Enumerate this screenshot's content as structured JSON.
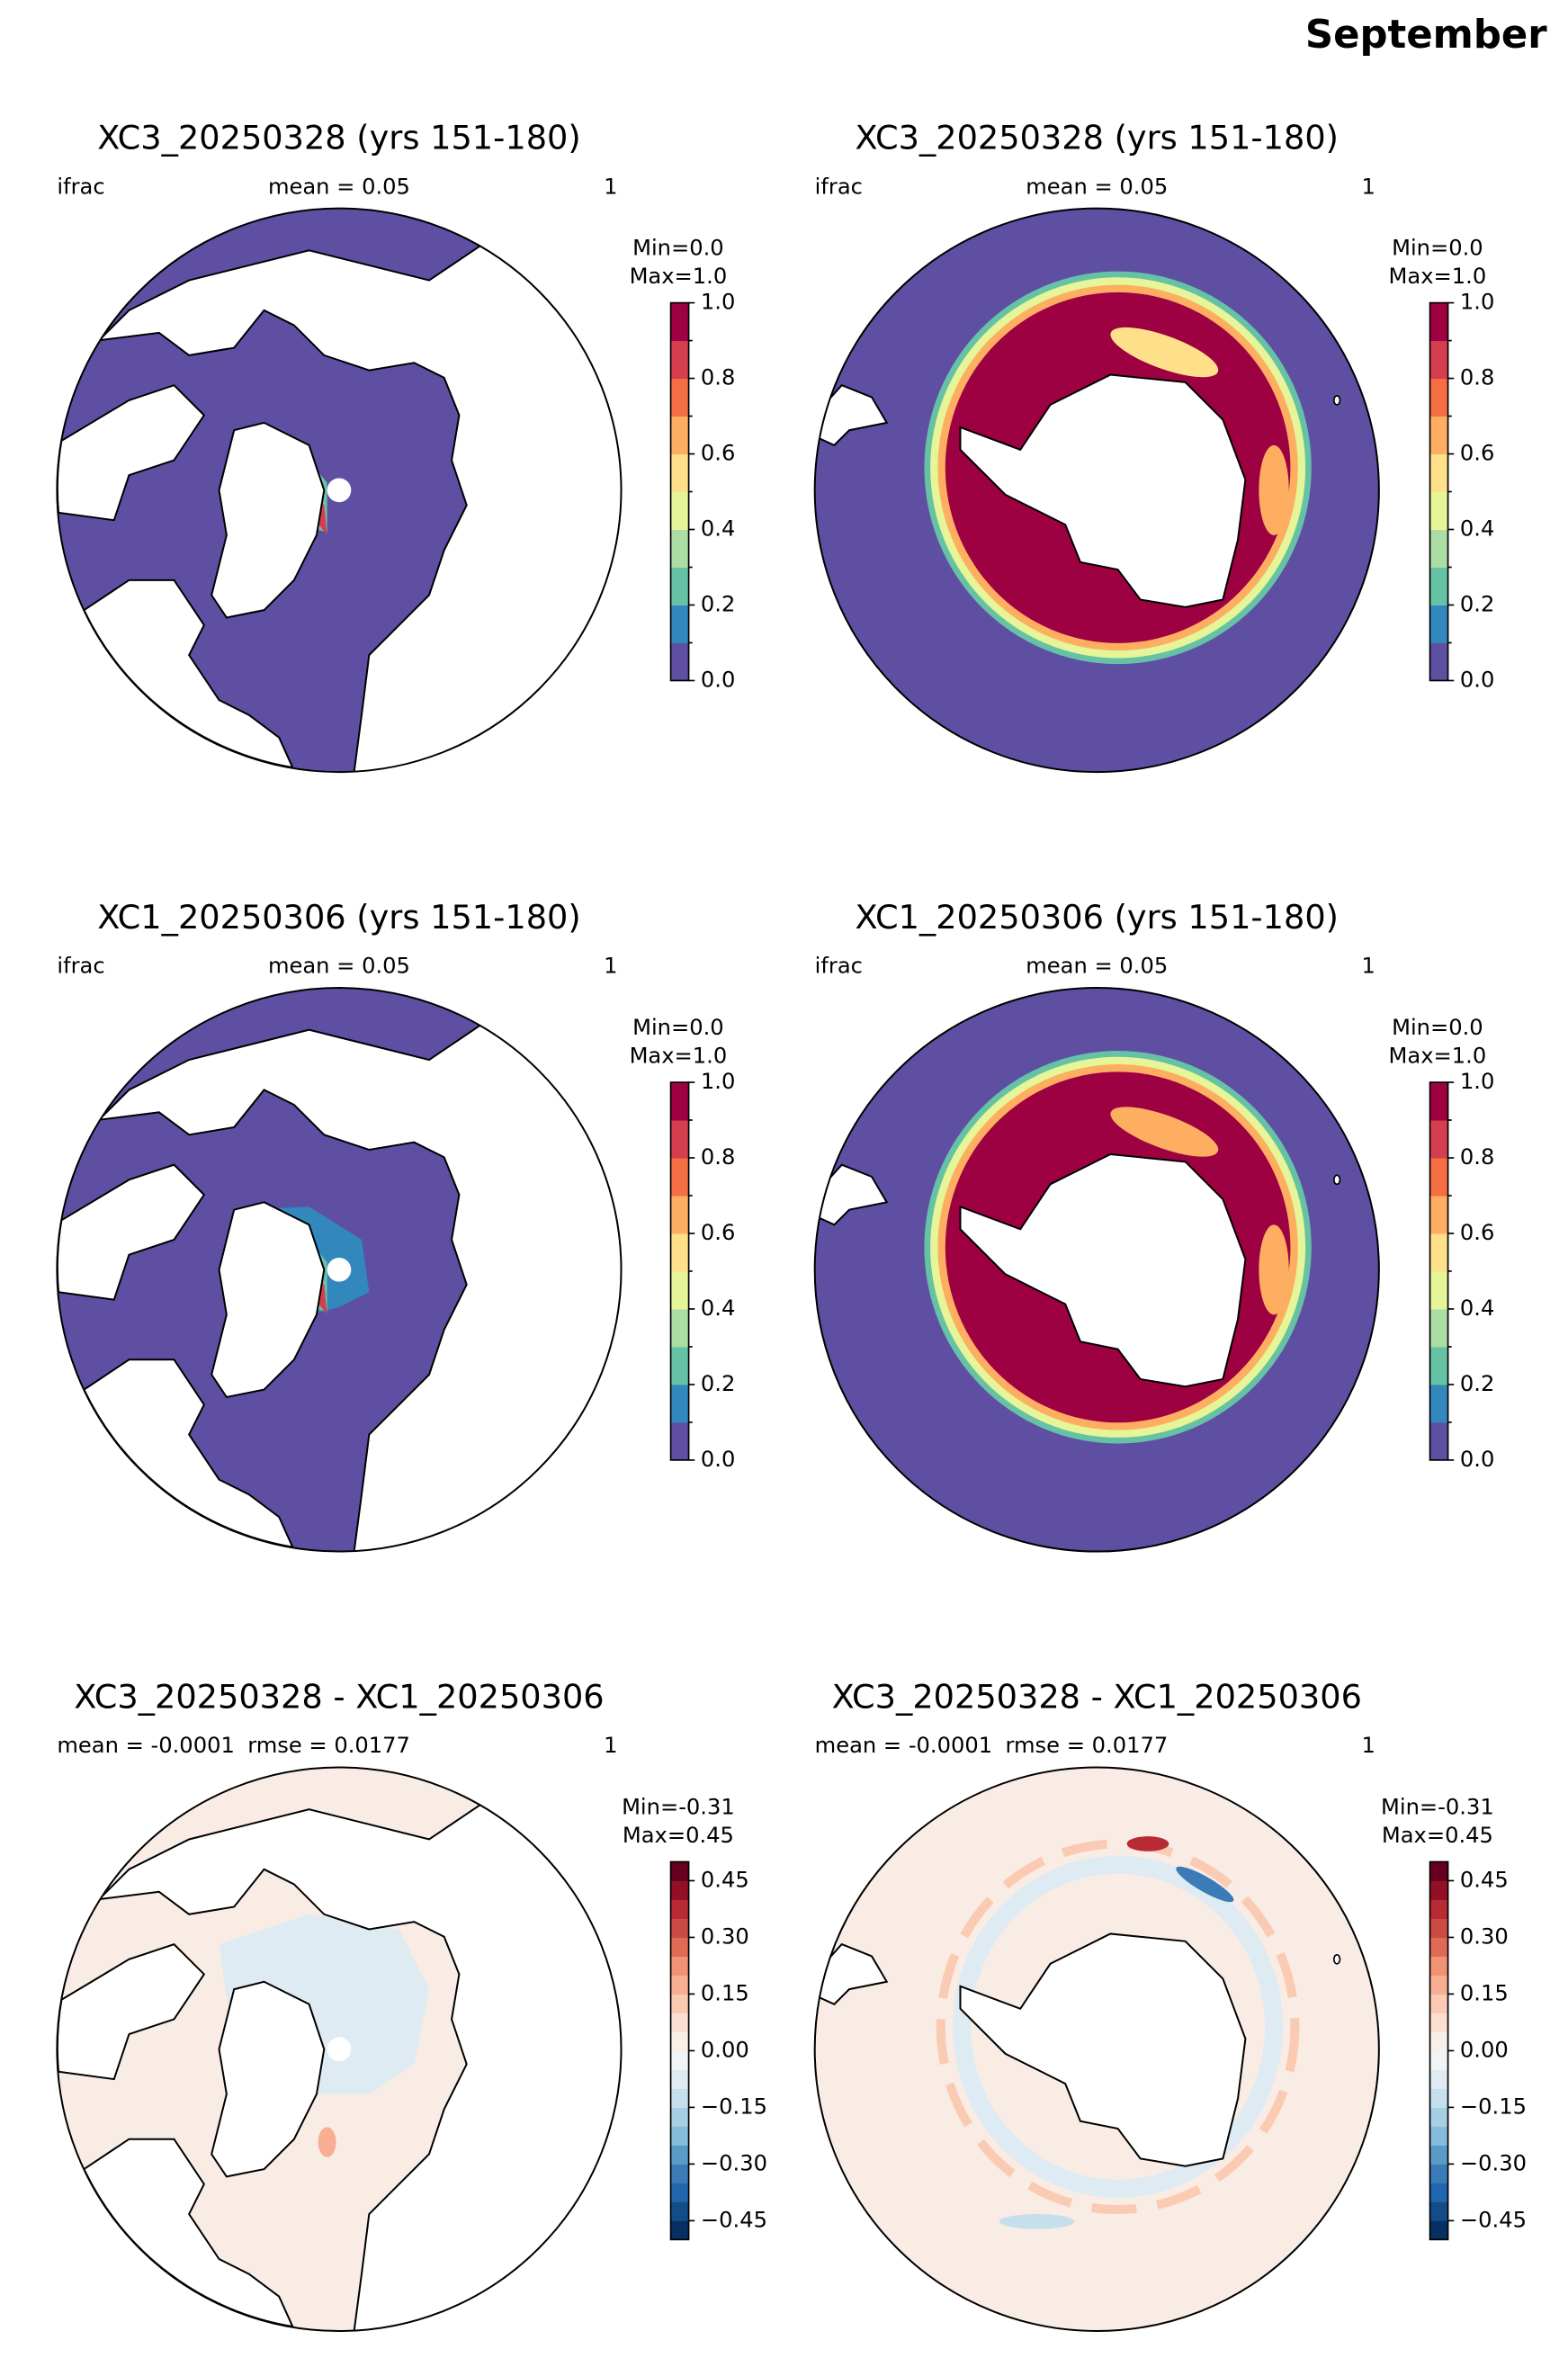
{
  "title": "September",
  "rows": [
    {
      "title": "XC3_20250328 (yrs 151-180)",
      "variable": "ifrac",
      "stats": [
        "mean = 0.05"
      ],
      "right_label": "1",
      "min_label": "Min=0.0",
      "max_label": "Max=1.0",
      "colorbar": {
        "clim": [
          0,
          1
        ],
        "colors": [
          "#5e4fa2",
          "#3288bd",
          "#66c2a5",
          "#abdda4",
          "#e6f598",
          "#fee08b",
          "#fdae61",
          "#f46d43",
          "#d53e4f",
          "#9e0142"
        ],
        "ticks": [
          {
            "value": 0,
            "label": "0.0"
          },
          0.2,
          0.4,
          0.6,
          0.8,
          {
            "value": 1,
            "label": "1.0"
          }
        ],
        "minor_ticks": [
          0.1,
          0.3,
          0.5,
          0.7,
          0.9
        ]
      }
    },
    {
      "title": "XC1_20250306 (yrs 151-180)",
      "variable": "ifrac",
      "stats": [
        "mean = 0.05"
      ],
      "right_label": "1",
      "min_label": "Min=0.0",
      "max_label": "Max=1.0",
      "colorbar": {
        "clim": [
          0,
          1
        ],
        "colors": [
          "#5e4fa2",
          "#3288bd",
          "#66c2a5",
          "#abdda4",
          "#e6f598",
          "#fee08b",
          "#fdae61",
          "#f46d43",
          "#d53e4f",
          "#9e0142"
        ],
        "ticks": [
          {
            "value": 0,
            "label": "0.0"
          },
          0.2,
          0.4,
          0.6,
          0.8,
          {
            "value": 1,
            "label": "1.0"
          }
        ],
        "minor_ticks": [
          0.1,
          0.3,
          0.5,
          0.7,
          0.9
        ]
      }
    },
    {
      "title": "XC3_20250328 - XC1_20250306",
      "stats": [
        "mean = -0.0001",
        "rmse = 0.0177"
      ],
      "right_label": "1",
      "min_label": "Min=-0.31",
      "max_label": "Max=0.45",
      "colorbar": {
        "clim": [
          -0.5,
          0.5
        ],
        "colors": [
          "#053061",
          "#134c87",
          "#2166ac",
          "#3a7bb8",
          "#5a9bc8",
          "#86bcdb",
          "#a7cfe4",
          "#c6dfed",
          "#deebf2",
          "#f0f4f6",
          "#f9efe9",
          "#fbe0d1",
          "#fbcab3",
          "#f7ae92",
          "#f09273",
          "#e06b55",
          "#cc4a44",
          "#b82a34",
          "#931024",
          "#67001f"
        ],
        "ticks": [
          {
            "value": -0.45,
            "label": "−0.45"
          },
          {
            "value": -0.3,
            "label": "−0.30"
          },
          {
            "value": -0.15,
            "label": "−0.15"
          },
          {
            "value": 0,
            "label": "0.00"
          },
          0.15,
          {
            "value": 0.3,
            "label": "0.30"
          },
          0.45
        ]
      }
    }
  ]
}
